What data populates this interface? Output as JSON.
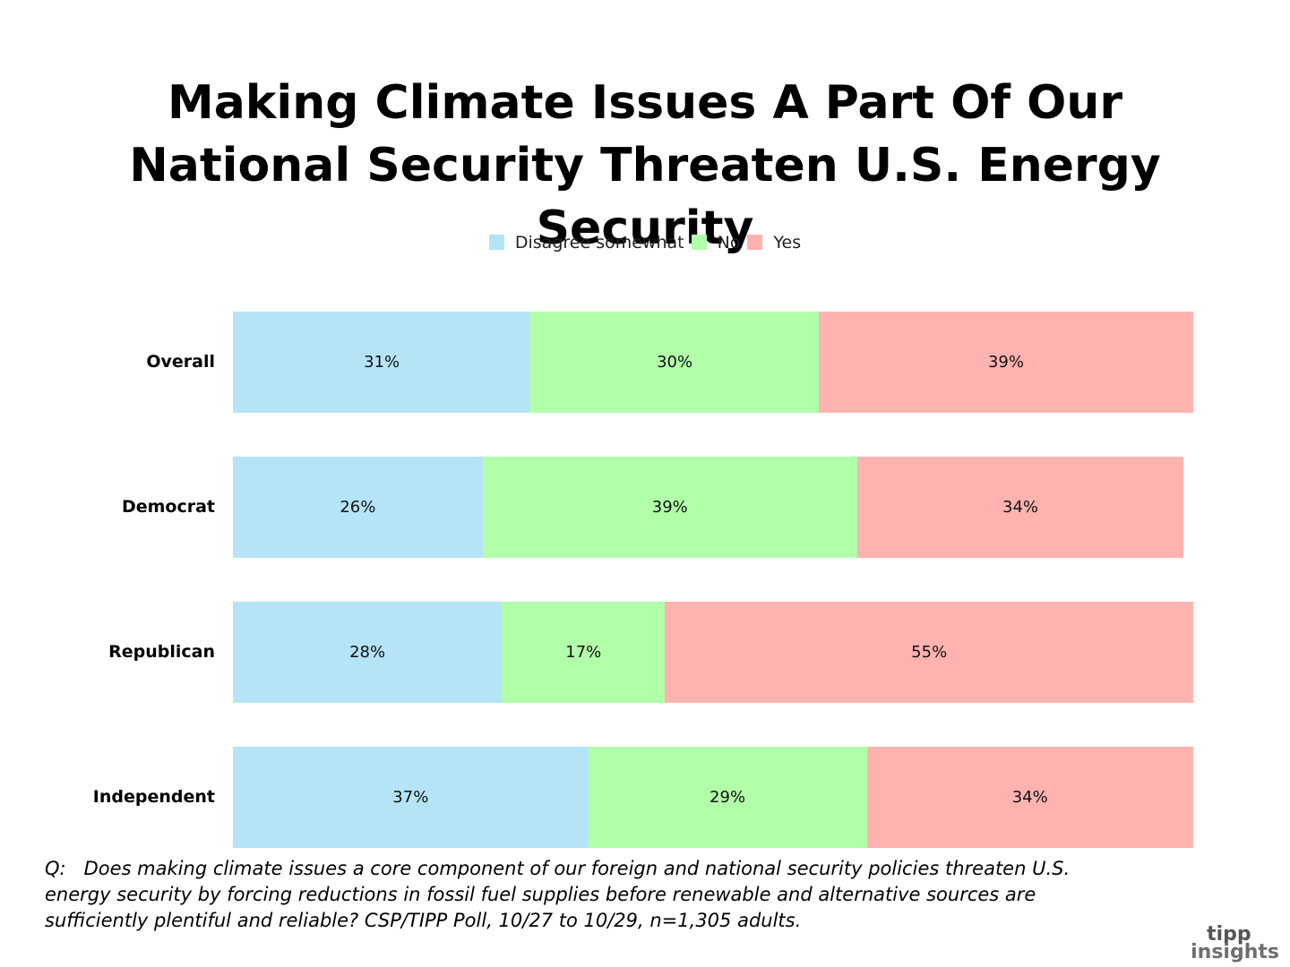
{
  "chart_data": {
    "type": "stacked-bar-horizontal",
    "title": "Making Climate Issues A Part Of Our National Security Threaten U.S. Energy Security",
    "categories": [
      "Overall",
      "Democrat",
      "Republican",
      "Independent"
    ],
    "series": [
      {
        "name": "Disagree somewhat",
        "color": "#b5e4f6",
        "values": [
          31,
          26,
          28,
          37
        ],
        "value_labels": [
          "31%",
          "26%",
          "28%",
          "37%"
        ]
      },
      {
        "name": "No",
        "color": "#b2ffaa",
        "values": [
          30,
          39,
          17,
          29
        ],
        "value_labels": [
          "30%",
          "39%",
          "17%",
          "29%"
        ]
      },
      {
        "name": "Yes",
        "color": "#ffb3b0",
        "values": [
          39,
          34,
          55,
          34
        ],
        "value_labels": [
          "39%",
          "34%",
          "55%",
          "34%"
        ]
      }
    ],
    "xlim": [
      0,
      100
    ],
    "legend": "top",
    "footnote": "Q:   Does making climate issues a core component of our foreign and national security policies threaten U.S. energy security by forcing reductions in fossil fuel supplies before renewable and alternative sources are sufficiently plentiful and reliable? CSP/TIPP Poll, 10/27 to 10/29, n=1,305 adults.",
    "logo": [
      "tipp",
      "insights"
    ]
  }
}
